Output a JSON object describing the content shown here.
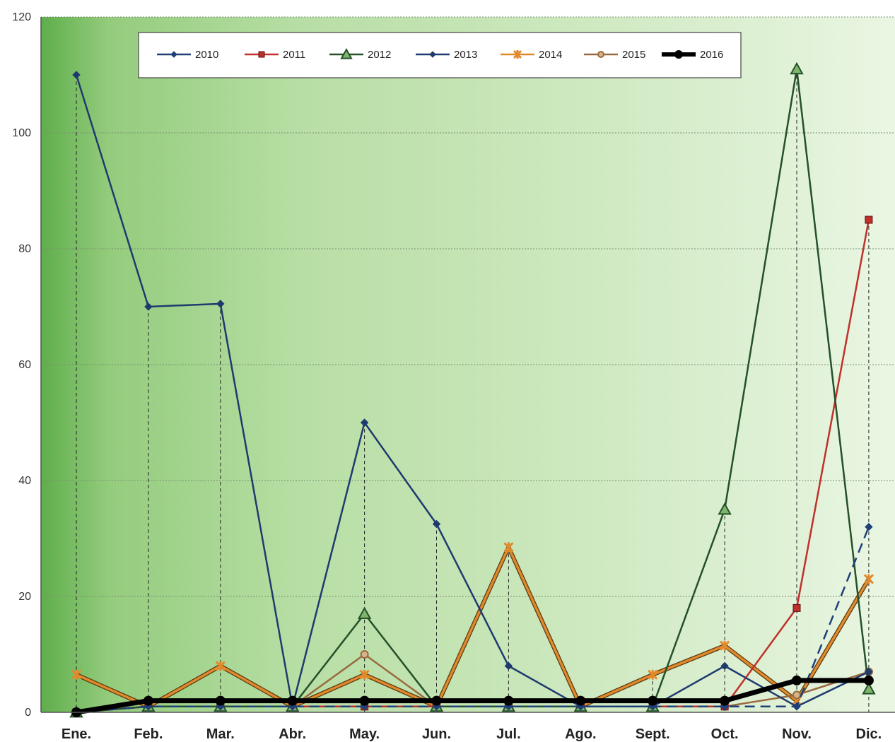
{
  "chart_data": {
    "type": "line",
    "categories": [
      "Ene.",
      "Feb.",
      "Mar.",
      "Abr.",
      "May.",
      "Jun.",
      "Jul.",
      "Ago.",
      "Sept.",
      "Oct.",
      "Nov.",
      "Dic."
    ],
    "ylim": [
      0,
      120
    ],
    "yticks": [
      "0",
      "20",
      "40",
      "60",
      "80",
      "100",
      "120"
    ],
    "grid": true,
    "legend_position": "top",
    "series": [
      {
        "name": "2010",
        "color": "#1f3f78",
        "marker": "diamond",
        "dashed": true,
        "values": [
          0,
          1,
          1,
          1,
          1,
          1,
          1,
          1,
          1,
          1,
          1,
          32
        ]
      },
      {
        "name": "2011",
        "color": "#c0302a",
        "marker": "square",
        "dashed": false,
        "values": [
          0,
          1,
          1,
          1,
          1,
          1,
          1,
          1,
          1,
          1,
          18,
          85
        ]
      },
      {
        "name": "2012",
        "color": "#24502a",
        "marker": "triangle",
        "dashed": false,
        "values": [
          0,
          1,
          1,
          1,
          17,
          1,
          1,
          1,
          1,
          35,
          111,
          4
        ]
      },
      {
        "name": "2013",
        "color": "#1f3a6e",
        "marker": "diamond",
        "dashed": false,
        "values": [
          110,
          70,
          70.5,
          1,
          50,
          32.5,
          8,
          1,
          1,
          8,
          1,
          7
        ]
      },
      {
        "name": "2014",
        "color": "#e08a2c",
        "marker": "star",
        "dashed": false,
        "values": [
          6.5,
          1,
          8,
          1,
          6.5,
          1,
          28.5,
          1,
          6.5,
          11.5,
          2,
          23
        ]
      },
      {
        "name": "2015",
        "color": "#9a6a40",
        "marker": "circle",
        "dashed": false,
        "values": [
          0,
          1,
          1,
          1,
          10,
          1,
          1,
          1,
          1,
          1,
          3,
          7
        ]
      },
      {
        "name": "2016",
        "color": "#000000",
        "marker": "circle",
        "dashed": false,
        "thick": true,
        "values": [
          0,
          2,
          2,
          2,
          2,
          2,
          2,
          2,
          2,
          2,
          5.5,
          5.5
        ]
      }
    ]
  }
}
